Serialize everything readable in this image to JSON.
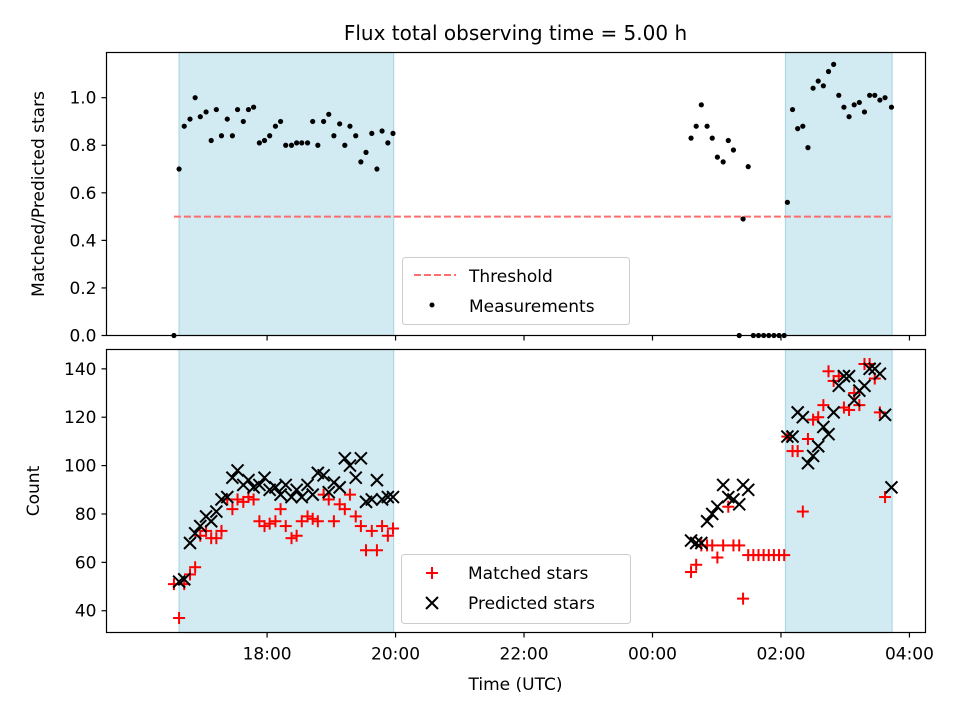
{
  "chart_data": {
    "type": "scatter",
    "title": "Flux total observing time = 5.00 h",
    "xlabel": "Time (UTC)",
    "x_unit": "hours since 16:00 UTC",
    "x_range": [
      -0.5,
      12.25
    ],
    "x_ticks": [
      {
        "t": 2,
        "label": "18:00"
      },
      {
        "t": 4,
        "label": "20:00"
      },
      {
        "t": 6,
        "label": "22:00"
      },
      {
        "t": 8,
        "label": "00:00"
      },
      {
        "t": 10,
        "label": "02:00"
      },
      {
        "t": 12,
        "label": "04:00"
      }
    ],
    "shaded_intervals": [
      [
        0.63,
        3.97
      ],
      [
        10.07,
        11.73
      ]
    ],
    "panels": [
      {
        "id": "ratio",
        "ylabel": "Matched/Predicted stars",
        "ylim": [
          0,
          1.19
        ],
        "yticks": [
          "0.0",
          "0.2",
          "0.4",
          "0.6",
          "0.8",
          "1.0"
        ],
        "threshold": 0.5,
        "legend": {
          "threshold_label": "Threshold",
          "measurements_label": "Measurements"
        },
        "measurements": [
          [
            0.55,
            0.0
          ],
          [
            0.63,
            0.7
          ],
          [
            0.71,
            0.88
          ],
          [
            0.8,
            0.91
          ],
          [
            0.88,
            1.0
          ],
          [
            0.96,
            0.92
          ],
          [
            1.05,
            0.94
          ],
          [
            1.13,
            0.82
          ],
          [
            1.21,
            0.95
          ],
          [
            1.29,
            0.84
          ],
          [
            1.38,
            0.91
          ],
          [
            1.46,
            0.84
          ],
          [
            1.54,
            0.95
          ],
          [
            1.63,
            0.9
          ],
          [
            1.71,
            0.95
          ],
          [
            1.79,
            0.96
          ],
          [
            1.88,
            0.81
          ],
          [
            1.96,
            0.82
          ],
          [
            2.04,
            0.84
          ],
          [
            2.13,
            0.88
          ],
          [
            2.21,
            0.9
          ],
          [
            2.29,
            0.8
          ],
          [
            2.38,
            0.8
          ],
          [
            2.46,
            0.81
          ],
          [
            2.54,
            0.81
          ],
          [
            2.63,
            0.81
          ],
          [
            2.71,
            0.9
          ],
          [
            2.79,
            0.8
          ],
          [
            2.88,
            0.9
          ],
          [
            2.96,
            0.93
          ],
          [
            3.04,
            0.84
          ],
          [
            3.13,
            0.89
          ],
          [
            3.21,
            0.8
          ],
          [
            3.29,
            0.88
          ],
          [
            3.38,
            0.84
          ],
          [
            3.46,
            0.73
          ],
          [
            3.54,
            0.77
          ],
          [
            3.63,
            0.85
          ],
          [
            3.71,
            0.7
          ],
          [
            3.79,
            0.86
          ],
          [
            3.88,
            0.81
          ],
          [
            3.96,
            0.85
          ],
          [
            8.6,
            0.83
          ],
          [
            8.68,
            0.88
          ],
          [
            8.76,
            0.97
          ],
          [
            8.85,
            0.88
          ],
          [
            8.93,
            0.83
          ],
          [
            9.01,
            0.75
          ],
          [
            9.1,
            0.73
          ],
          [
            9.18,
            0.82
          ],
          [
            9.26,
            0.78
          ],
          [
            9.35,
            0.0
          ],
          [
            9.41,
            0.49
          ],
          [
            9.49,
            0.71
          ],
          [
            9.57,
            0.0
          ],
          [
            9.65,
            0.0
          ],
          [
            9.73,
            0.0
          ],
          [
            9.81,
            0.0
          ],
          [
            9.89,
            0.0
          ],
          [
            9.97,
            0.0
          ],
          [
            10.05,
            0.0
          ],
          [
            10.1,
            0.56
          ],
          [
            10.18,
            0.95
          ],
          [
            10.26,
            0.87
          ],
          [
            10.34,
            0.88
          ],
          [
            10.42,
            0.79
          ],
          [
            10.5,
            1.04
          ],
          [
            10.58,
            1.07
          ],
          [
            10.66,
            1.05
          ],
          [
            10.74,
            1.11
          ],
          [
            10.82,
            1.14
          ],
          [
            10.9,
            1.01
          ],
          [
            10.98,
            0.96
          ],
          [
            11.06,
            0.92
          ],
          [
            11.14,
            0.97
          ],
          [
            11.22,
            0.98
          ],
          [
            11.3,
            0.94
          ],
          [
            11.38,
            1.01
          ],
          [
            11.46,
            1.01
          ],
          [
            11.54,
            0.99
          ],
          [
            11.62,
            1.0
          ],
          [
            11.72,
            0.96
          ]
        ]
      },
      {
        "id": "counts",
        "ylabel": "Count",
        "ylim": [
          31,
          148
        ],
        "yticks": [
          "40",
          "60",
          "80",
          "100",
          "120",
          "140"
        ],
        "legend": {
          "matched_label": "Matched stars",
          "predicted_label": "Predicted stars"
        },
        "matched": [
          [
            0.55,
            51
          ],
          [
            0.63,
            37
          ],
          [
            0.71,
            51
          ],
          [
            0.8,
            55
          ],
          [
            0.88,
            58
          ],
          [
            0.96,
            71
          ],
          [
            1.05,
            73
          ],
          [
            1.13,
            70
          ],
          [
            1.21,
            70
          ],
          [
            1.29,
            73
          ],
          [
            1.38,
            86
          ],
          [
            1.46,
            82
          ],
          [
            1.54,
            86
          ],
          [
            1.63,
            85
          ],
          [
            1.71,
            87
          ],
          [
            1.79,
            86
          ],
          [
            1.88,
            77
          ],
          [
            1.96,
            75
          ],
          [
            2.04,
            76
          ],
          [
            2.13,
            77
          ],
          [
            2.21,
            82
          ],
          [
            2.29,
            75
          ],
          [
            2.38,
            70
          ],
          [
            2.46,
            71
          ],
          [
            2.54,
            77
          ],
          [
            2.63,
            79
          ],
          [
            2.71,
            78
          ],
          [
            2.79,
            77
          ],
          [
            2.88,
            88
          ],
          [
            2.96,
            86
          ],
          [
            3.04,
            77
          ],
          [
            3.13,
            84
          ],
          [
            3.21,
            82
          ],
          [
            3.29,
            88
          ],
          [
            3.38,
            79
          ],
          [
            3.46,
            75
          ],
          [
            3.54,
            65
          ],
          [
            3.63,
            73
          ],
          [
            3.71,
            65
          ],
          [
            3.79,
            75
          ],
          [
            3.88,
            71
          ],
          [
            3.96,
            74
          ],
          [
            8.6,
            56
          ],
          [
            8.68,
            59
          ],
          [
            8.76,
            67
          ],
          [
            8.85,
            67
          ],
          [
            8.93,
            67
          ],
          [
            9.01,
            62
          ],
          [
            9.1,
            67
          ],
          [
            9.18,
            83
          ],
          [
            9.26,
            67
          ],
          [
            9.35,
            67
          ],
          [
            9.41,
            45
          ],
          [
            9.49,
            63
          ],
          [
            9.57,
            63
          ],
          [
            9.65,
            63
          ],
          [
            9.73,
            63
          ],
          [
            9.81,
            63
          ],
          [
            9.89,
            63
          ],
          [
            9.97,
            63
          ],
          [
            10.05,
            63
          ],
          [
            10.1,
            112
          ],
          [
            10.18,
            106
          ],
          [
            10.26,
            106
          ],
          [
            10.34,
            81
          ],
          [
            10.42,
            111
          ],
          [
            10.5,
            119
          ],
          [
            10.58,
            120
          ],
          [
            10.66,
            125
          ],
          [
            10.74,
            139
          ],
          [
            10.82,
            135
          ],
          [
            10.9,
            137
          ],
          [
            10.98,
            124
          ],
          [
            11.06,
            123
          ],
          [
            11.14,
            130
          ],
          [
            11.22,
            125
          ],
          [
            11.3,
            142
          ],
          [
            11.38,
            142
          ],
          [
            11.46,
            136
          ],
          [
            11.54,
            122
          ],
          [
            11.62,
            87
          ]
        ],
        "predicted": [
          [
            0.63,
            52
          ],
          [
            0.71,
            53
          ],
          [
            0.8,
            68
          ],
          [
            0.88,
            72
          ],
          [
            0.96,
            75
          ],
          [
            1.05,
            79
          ],
          [
            1.13,
            77
          ],
          [
            1.21,
            81
          ],
          [
            1.29,
            86
          ],
          [
            1.38,
            87
          ],
          [
            1.46,
            95
          ],
          [
            1.54,
            98
          ],
          [
            1.63,
            92
          ],
          [
            1.71,
            94
          ],
          [
            1.79,
            91
          ],
          [
            1.88,
            92
          ],
          [
            1.96,
            95
          ],
          [
            2.04,
            90
          ],
          [
            2.13,
            91
          ],
          [
            2.21,
            88
          ],
          [
            2.29,
            92
          ],
          [
            2.38,
            87
          ],
          [
            2.46,
            90
          ],
          [
            2.54,
            87
          ],
          [
            2.63,
            92
          ],
          [
            2.71,
            88
          ],
          [
            2.79,
            97
          ],
          [
            2.88,
            96
          ],
          [
            2.96,
            89
          ],
          [
            3.04,
            93
          ],
          [
            3.13,
            91
          ],
          [
            3.21,
            103
          ],
          [
            3.29,
            100
          ],
          [
            3.38,
            95
          ],
          [
            3.46,
            103
          ],
          [
            3.54,
            85
          ],
          [
            3.63,
            86
          ],
          [
            3.71,
            94
          ],
          [
            3.79,
            86
          ],
          [
            3.88,
            87
          ],
          [
            3.96,
            87
          ],
          [
            8.6,
            69
          ],
          [
            8.68,
            68
          ],
          [
            8.76,
            68
          ],
          [
            8.85,
            77
          ],
          [
            8.93,
            80
          ],
          [
            9.01,
            83
          ],
          [
            9.1,
            92
          ],
          [
            9.18,
            87
          ],
          [
            9.26,
            86
          ],
          [
            9.35,
            84
          ],
          [
            9.41,
            92
          ],
          [
            9.49,
            90
          ],
          [
            10.1,
            112
          ],
          [
            10.18,
            112
          ],
          [
            10.26,
            122
          ],
          [
            10.34,
            120
          ],
          [
            10.42,
            101
          ],
          [
            10.5,
            104
          ],
          [
            10.58,
            108
          ],
          [
            10.66,
            116
          ],
          [
            10.74,
            113
          ],
          [
            10.82,
            122
          ],
          [
            10.9,
            133
          ],
          [
            10.98,
            137
          ],
          [
            11.06,
            137
          ],
          [
            11.14,
            127
          ],
          [
            11.22,
            131
          ],
          [
            11.3,
            133
          ],
          [
            11.38,
            140
          ],
          [
            11.46,
            140
          ],
          [
            11.54,
            138
          ],
          [
            11.62,
            121
          ],
          [
            11.72,
            91
          ]
        ]
      }
    ],
    "colors": {
      "shade": "#add8e6",
      "threshold": "#ff6e6e",
      "measurement": "#000000",
      "matched": "#ff0000",
      "predicted": "#000000"
    }
  }
}
